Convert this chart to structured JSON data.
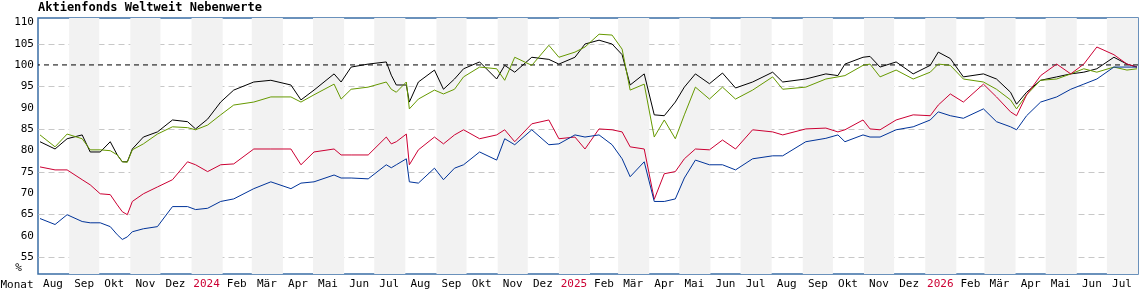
{
  "chart_data": {
    "type": "line",
    "title": "Aktienfonds Weltweit Nebenwerte",
    "xlabel": "Monat",
    "ylabel": "%",
    "x": [
      "2023-08-03",
      "2023-08-18",
      "2023-08-30",
      "2023-09-14",
      "2023-09-22",
      "2023-10-02",
      "2023-10-12",
      "2023-10-19",
      "2023-10-24",
      "2023-10-29",
      "2023-11-03",
      "2023-11-14",
      "2023-11-28",
      "2023-12-13",
      "2023-12-28",
      "2024-01-05",
      "2024-01-17",
      "2024-01-30",
      "2024-02-12",
      "2024-03-03",
      "2024-03-20",
      "2024-04-09",
      "2024-04-19",
      "2024-05-02",
      "2024-05-22",
      "2024-05-29",
      "2024-06-08",
      "2024-06-25",
      "2024-07-13",
      "2024-07-18",
      "2024-07-23",
      "2024-08-02",
      "2024-08-05",
      "2024-08-14",
      "2024-08-30",
      "2024-09-08",
      "2024-09-19",
      "2024-09-28",
      "2024-10-14",
      "2024-10-31",
      "2024-11-08",
      "2024-11-18",
      "2024-12-05",
      "2024-12-22",
      "2025-01-01",
      "2025-01-17",
      "2025-01-27",
      "2025-02-10",
      "2025-02-23",
      "2025-03-05",
      "2025-03-13",
      "2025-03-27",
      "2025-04-06",
      "2025-04-16",
      "2025-04-27",
      "2025-05-06",
      "2025-05-17",
      "2025-05-31",
      "2025-06-13",
      "2025-06-26",
      "2025-07-13",
      "2025-08-02",
      "2025-08-12",
      "2025-09-04",
      "2025-09-24",
      "2025-10-06",
      "2025-10-13",
      "2025-10-31",
      "2025-11-07",
      "2025-11-17",
      "2025-12-03",
      "2025-12-20",
      "2026-01-06",
      "2026-01-14",
      "2026-01-26",
      "2026-02-08",
      "2026-02-28",
      "2026-03-13",
      "2026-03-27",
      "2026-04-02",
      "2026-04-12",
      "2026-04-26",
      "2026-05-12",
      "2026-05-26",
      "2026-06-08",
      "2026-06-21",
      "2026-07-08",
      "2026-07-21",
      "2026-07-31"
    ],
    "series": [
      {
        "color": "#000000",
        "values": [
          82.0,
          80.3,
          82.7,
          83.6,
          79.6,
          79.6,
          82.0,
          78.9,
          77.3,
          77.3,
          80.3,
          83.1,
          84.3,
          87.1,
          86.7,
          85.0,
          87.3,
          91.3,
          94.1,
          96.0,
          96.4,
          95.3,
          91.8,
          94.1,
          97.9,
          96.0,
          99.5,
          100.2,
          100.7,
          97.6,
          95.3,
          95.3,
          91.3,
          96.0,
          98.8,
          94.3,
          96.7,
          99.1,
          100.7,
          96.7,
          99.9,
          98.3,
          101.8,
          101.3,
          100.2,
          101.8,
          104.9,
          105.8,
          104.9,
          102.4,
          95.3,
          97.9,
          88.3,
          88.1,
          91.3,
          94.8,
          97.9,
          95.6,
          98.1,
          94.6,
          96.0,
          98.3,
          96.0,
          96.7,
          97.9,
          97.5,
          100.2,
          101.8,
          102.0,
          99.5,
          100.7,
          97.9,
          99.9,
          103.0,
          101.5,
          97.2,
          97.9,
          96.7,
          93.6,
          90.8,
          93.6,
          96.4,
          97.2,
          97.9,
          98.3,
          99.1,
          101.8,
          100.2,
          99.5
        ]
      },
      {
        "color": "#669900",
        "values": [
          83.6,
          80.8,
          83.8,
          82.7,
          80.1,
          80.1,
          79.9,
          78.9,
          77.3,
          77.2,
          80.1,
          81.5,
          83.8,
          85.5,
          85.3,
          84.8,
          85.9,
          88.3,
          90.6,
          91.3,
          92.5,
          92.5,
          91.3,
          93.0,
          95.5,
          92.0,
          94.3,
          94.8,
          96.0,
          94.3,
          93.6,
          96.0,
          89.7,
          92.0,
          94.1,
          93.2,
          94.3,
          97.2,
          99.5,
          99.1,
          96.4,
          101.8,
          99.9,
          104.6,
          101.8,
          103.0,
          104.2,
          107.2,
          107.0,
          103.7,
          94.1,
          95.5,
          83.1,
          87.1,
          82.7,
          88.3,
          94.8,
          92.0,
          94.8,
          92.0,
          94.1,
          97.2,
          94.3,
          94.8,
          96.7,
          97.2,
          97.5,
          99.9,
          100.2,
          97.2,
          98.8,
          96.7,
          98.3,
          100.2,
          99.9,
          96.7,
          96.0,
          94.3,
          91.8,
          89.7,
          93.0,
          96.4,
          96.7,
          97.9,
          99.1,
          98.3,
          99.5,
          98.8,
          99.1
        ]
      },
      {
        "color": "#cc0033",
        "values": [
          76.1,
          75.4,
          75.4,
          73.1,
          71.9,
          69.8,
          69.6,
          67.2,
          65.6,
          64.9,
          68.0,
          69.8,
          71.4,
          73.1,
          77.3,
          76.6,
          75.0,
          76.6,
          76.8,
          80.3,
          80.3,
          80.3,
          76.6,
          79.6,
          80.3,
          78.9,
          78.9,
          78.9,
          83.1,
          81.5,
          82.0,
          83.8,
          76.6,
          80.1,
          83.1,
          81.5,
          83.6,
          84.8,
          82.7,
          83.6,
          84.8,
          82.0,
          86.2,
          87.1,
          82.7,
          83.1,
          80.3,
          85.0,
          84.8,
          84.3,
          80.8,
          80.3,
          68.5,
          74.5,
          75.0,
          78.0,
          80.3,
          80.1,
          82.4,
          80.3,
          84.8,
          84.3,
          83.6,
          85.0,
          85.2,
          84.3,
          84.8,
          87.1,
          85.0,
          84.8,
          87.1,
          88.3,
          88.1,
          90.6,
          93.2,
          91.3,
          95.5,
          92.5,
          89.0,
          88.1,
          93.0,
          97.5,
          100.2,
          97.9,
          100.2,
          104.2,
          102.4,
          100.2,
          99.5
        ]
      },
      {
        "color": "#003399",
        "values": [
          64.0,
          62.6,
          64.9,
          63.3,
          63.0,
          63.0,
          62.1,
          60.2,
          59.1,
          59.7,
          60.9,
          61.6,
          62.1,
          66.8,
          66.8,
          66.1,
          66.4,
          68.0,
          68.6,
          71.0,
          72.6,
          71.0,
          72.3,
          72.6,
          74.2,
          73.5,
          73.5,
          73.3,
          76.6,
          75.9,
          76.6,
          78.0,
          72.6,
          72.3,
          75.8,
          73.1,
          75.8,
          76.6,
          79.6,
          77.7,
          82.7,
          81.3,
          84.8,
          81.3,
          81.5,
          83.6,
          83.1,
          83.6,
          81.3,
          78.0,
          73.8,
          77.3,
          68.0,
          68.0,
          68.6,
          73.5,
          77.7,
          76.6,
          76.6,
          75.4,
          78.0,
          78.7,
          78.7,
          82.0,
          82.8,
          83.6,
          82.0,
          83.6,
          83.1,
          83.1,
          84.8,
          85.5,
          87.1,
          89.0,
          88.1,
          87.5,
          89.7,
          86.7,
          85.5,
          84.8,
          88.1,
          91.3,
          92.5,
          94.3,
          95.5,
          96.7,
          99.5,
          99.5,
          99.5
        ]
      }
    ],
    "xlim": [
      "2023-08-01",
      "2026-08-01"
    ],
    "xticks": [
      {
        "value": "2023-08-16",
        "label": "Aug"
      },
      {
        "value": "2023-09-16",
        "label": "Sep"
      },
      {
        "value": "2023-10-16",
        "label": "Okt"
      },
      {
        "value": "2023-11-16",
        "label": "Nov"
      },
      {
        "value": "2023-12-16",
        "label": "Dez"
      },
      {
        "value": "2024-01-16",
        "label": "2024"
      },
      {
        "value": "2024-02-15",
        "label": "Feb"
      },
      {
        "value": "2024-03-16",
        "label": "Mär"
      },
      {
        "value": "2024-04-16",
        "label": "Apr"
      },
      {
        "value": "2024-05-16",
        "label": "Mai"
      },
      {
        "value": "2024-06-16",
        "label": "Jun"
      },
      {
        "value": "2024-07-16",
        "label": "Jul"
      },
      {
        "value": "2024-08-16",
        "label": "Aug"
      },
      {
        "value": "2024-09-16",
        "label": "Sep"
      },
      {
        "value": "2024-10-16",
        "label": "Okt"
      },
      {
        "value": "2024-11-16",
        "label": "Nov"
      },
      {
        "value": "2024-12-16",
        "label": "Dez"
      },
      {
        "value": "2025-01-16",
        "label": "2025"
      },
      {
        "value": "2025-02-15",
        "label": "Feb"
      },
      {
        "value": "2025-03-16",
        "label": "Mär"
      },
      {
        "value": "2025-04-16",
        "label": "Apr"
      },
      {
        "value": "2025-05-16",
        "label": "Mai"
      },
      {
        "value": "2025-06-16",
        "label": "Jun"
      },
      {
        "value": "2025-07-16",
        "label": "Jul"
      },
      {
        "value": "2025-08-16",
        "label": "Aug"
      },
      {
        "value": "2025-09-16",
        "label": "Sep"
      },
      {
        "value": "2025-10-16",
        "label": "Okt"
      },
      {
        "value": "2025-11-16",
        "label": "Nov"
      },
      {
        "value": "2025-12-16",
        "label": "Dez"
      },
      {
        "value": "2026-01-16",
        "label": "2026"
      },
      {
        "value": "2026-02-15",
        "label": "Feb"
      },
      {
        "value": "2026-03-16",
        "label": "Mär"
      },
      {
        "value": "2026-04-16",
        "label": "Apr"
      },
      {
        "value": "2026-05-16",
        "label": "Mai"
      },
      {
        "value": "2026-06-16",
        "label": "Jun"
      },
      {
        "value": "2026-07-16",
        "label": "Jul"
      }
    ],
    "ylim": [
      51,
      111
    ],
    "yticks": [
      55,
      60,
      65,
      70,
      75,
      80,
      85,
      90,
      95,
      100,
      105,
      110
    ],
    "grid": "y",
    "line_style": "solid",
    "ref_lines": [
      {
        "axis": "y",
        "value": 100,
        "color": "#000000",
        "line_style": "dashed"
      }
    ],
    "bands": [
      {
        "axis": "x",
        "from": "2023-09-01",
        "to": "2023-10-01",
        "color": "#f2f2f2"
      },
      {
        "axis": "x",
        "from": "2023-11-01",
        "to": "2023-12-01",
        "color": "#f2f2f2"
      },
      {
        "axis": "x",
        "from": "2024-01-01",
        "to": "2024-02-01",
        "color": "#f2f2f2"
      },
      {
        "axis": "x",
        "from": "2024-03-01",
        "to": "2024-04-01",
        "color": "#f2f2f2"
      },
      {
        "axis": "x",
        "from": "2024-05-01",
        "to": "2024-06-01",
        "color": "#f2f2f2"
      },
      {
        "axis": "x",
        "from": "2024-07-01",
        "to": "2024-08-01",
        "color": "#f2f2f2"
      },
      {
        "axis": "x",
        "from": "2024-09-01",
        "to": "2024-10-01",
        "color": "#f2f2f2"
      },
      {
        "axis": "x",
        "from": "2024-11-01",
        "to": "2024-12-01",
        "color": "#f2f2f2"
      },
      {
        "axis": "x",
        "from": "2025-01-01",
        "to": "2025-02-01",
        "color": "#f2f2f2"
      },
      {
        "axis": "x",
        "from": "2025-03-01",
        "to": "2025-04-01",
        "color": "#f2f2f2"
      },
      {
        "axis": "x",
        "from": "2025-05-01",
        "to": "2025-06-01",
        "color": "#f2f2f2"
      },
      {
        "axis": "x",
        "from": "2025-07-01",
        "to": "2025-08-01",
        "color": "#f2f2f2"
      },
      {
        "axis": "x",
        "from": "2025-09-01",
        "to": "2025-10-01",
        "color": "#f2f2f2"
      },
      {
        "axis": "x",
        "from": "2025-11-01",
        "to": "2025-12-01",
        "color": "#f2f2f2"
      },
      {
        "axis": "x",
        "from": "2026-01-01",
        "to": "2026-02-01",
        "color": "#f2f2f2"
      },
      {
        "axis": "x",
        "from": "2026-03-01",
        "to": "2026-04-01",
        "color": "#f2f2f2"
      },
      {
        "axis": "x",
        "from": "2026-05-01",
        "to": "2026-06-01",
        "color": "#f2f2f2"
      },
      {
        "axis": "x",
        "from": "2026-07-01",
        "to": "2026-08-01",
        "color": "#f2f2f2"
      }
    ]
  }
}
